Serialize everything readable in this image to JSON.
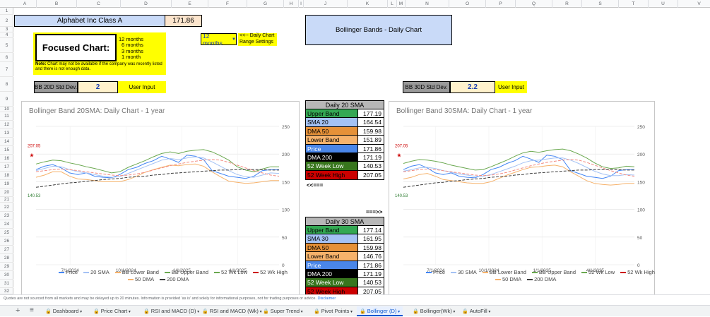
{
  "columns": [
    "A",
    "B",
    "C",
    "D",
    "E",
    "F",
    "G",
    "H",
    "I",
    "J",
    "K",
    "L",
    "M",
    "N",
    "O",
    "P",
    "Q",
    "R",
    "S",
    "T",
    "U",
    "V"
  ],
  "rows": [
    "1",
    "2",
    "3",
    "4",
    "5",
    "6",
    "7",
    "8",
    "9",
    "10",
    "11",
    "12",
    "13",
    "14",
    "15",
    "16",
    "17",
    "18",
    "19",
    "20",
    "21",
    "22",
    "23",
    "24",
    "25",
    "26",
    "27",
    "28",
    "29",
    "30",
    "31",
    "32"
  ],
  "company": {
    "name": "Alphabet Inc Class A",
    "price": "171.86"
  },
  "focused": {
    "label": "Focused Chart:",
    "options": [
      "12 months",
      "6 months",
      "3 months",
      "1 month"
    ],
    "note_bold": "Note:",
    "note": " Chart may not be available if the company was recently listed and there is not enough data."
  },
  "range": {
    "value": "12 months",
    "hint1": "<<-- Daily Chart",
    "hint2": "Range Settings"
  },
  "bb_title": "Bollinger Bands - Daily Chart",
  "std20": {
    "label": "BB 20D Std Dev.",
    "value": "2",
    "input": "User Input"
  },
  "std30": {
    "label": "BB 30D Std Dev.",
    "value": "2.2",
    "input": "User Input"
  },
  "arrow_left": "<<===",
  "arrow_right": "===>>",
  "table20": {
    "title": "Daily 20 SMA",
    "rows": [
      {
        "label": "Upper Band",
        "value": "177.19"
      },
      {
        "label": "SMA 20",
        "value": "164.54"
      },
      {
        "label": "DMA 50",
        "value": "159.98"
      },
      {
        "label": "Lower Band",
        "value": "151.89"
      },
      {
        "label": "Price",
        "value": "171.86"
      },
      {
        "label": "DMA 200",
        "value": "171.19"
      },
      {
        "label": "52 Week Low",
        "value": "140.53"
      },
      {
        "label": "52 Week High",
        "value": "207.05"
      }
    ]
  },
  "table30": {
    "title": "Daily 30 SMA",
    "rows": [
      {
        "label": "Upper Band",
        "value": "177.14"
      },
      {
        "label": "SMA 30",
        "value": "161.95"
      },
      {
        "label": "DMA 50",
        "value": "159.98"
      },
      {
        "label": "Lower Band",
        "value": "146.76"
      },
      {
        "label": "Price",
        "value": "171.86"
      },
      {
        "label": "DMA 200",
        "value": "171.19"
      },
      {
        "label": "52 Week Low",
        "value": "140.53"
      },
      {
        "label": "52 Week High",
        "value": "207.05"
      }
    ]
  },
  "row_colors": [
    "#34a853",
    "#a4c2f4",
    "#e69138",
    "#f6b26b",
    "#4a86e8",
    "#000000",
    "#38761d",
    "#cc0000"
  ],
  "row_text_colors": [
    "#000",
    "#000",
    "#000",
    "#000",
    "#fff",
    "#fff",
    "#fff",
    "#000"
  ],
  "chart_data": [
    {
      "type": "line",
      "title": "Bollinger Band 20SMA: Daily Chart - 1 year",
      "x_ticks": [
        "7/1/2024",
        "10/1/2024",
        "1/1/2025",
        "4/1/2025"
      ],
      "y_ticks": [
        "0",
        "50",
        "100",
        "150",
        "200",
        "250"
      ],
      "ylim": [
        0,
        250
      ],
      "high_label": "207.05",
      "low_label": "140.53",
      "legend": [
        "Price",
        "20 SMA",
        "BB Lower Band",
        "BB Upper Band",
        "52 Wk Low",
        "52 Wk High",
        "50 DMA",
        "200 DMA"
      ],
      "series": [
        {
          "name": "Price",
          "color": "#4285f4",
          "values": [
            172,
            178,
            181,
            175,
            166,
            163,
            166,
            160,
            158,
            157,
            163,
            172,
            176,
            183,
            188,
            196,
            191,
            185,
            198,
            196,
            190,
            170,
            165,
            160,
            158,
            156,
            160,
            170,
            172,
            172
          ]
        },
        {
          "name": "20 SMA",
          "color": "#a4c2f4",
          "values": [
            170,
            174,
            178,
            177,
            172,
            168,
            166,
            163,
            160,
            158,
            159,
            165,
            171,
            177,
            183,
            189,
            192,
            190,
            193,
            195,
            193,
            186,
            178,
            170,
            163,
            159,
            158,
            162,
            166,
            165
          ]
        },
        {
          "name": "BB Lower Band",
          "color": "#f6b26b",
          "values": [
            158,
            162,
            168,
            168,
            160,
            155,
            154,
            152,
            150,
            150,
            150,
            154,
            160,
            167,
            172,
            176,
            180,
            179,
            181,
            182,
            178,
            168,
            159,
            151,
            149,
            147,
            148,
            150,
            152,
            152
          ]
        },
        {
          "name": "BB Upper Band",
          "color": "#6aa84f",
          "values": [
            182,
            186,
            189,
            188,
            184,
            181,
            177,
            174,
            170,
            166,
            168,
            176,
            182,
            188,
            195,
            201,
            204,
            201,
            205,
            207,
            208,
            204,
            197,
            189,
            177,
            171,
            168,
            173,
            177,
            177
          ]
        },
        {
          "name": "50 DMA",
          "color": "#f28b82",
          "values": [
            168,
            170,
            172,
            173,
            172,
            170,
            168,
            166,
            164,
            162,
            161,
            162,
            164,
            167,
            171,
            175,
            179,
            182,
            185,
            187,
            189,
            190,
            189,
            185,
            180,
            175,
            170,
            166,
            162,
            160
          ]
        },
        {
          "name": "200 DMA",
          "color": "#3c3c3c",
          "values": [
            140,
            142,
            144,
            146,
            148,
            149,
            151,
            152,
            154,
            155,
            156,
            158,
            159,
            160,
            162,
            163,
            165,
            166,
            167,
            168,
            169,
            170,
            171,
            171,
            172,
            172,
            172,
            172,
            171,
            171
          ]
        }
      ]
    },
    {
      "type": "line",
      "title": "Bollinger Band 30SMA: Daily Chart - 1 year",
      "x_ticks": [
        "7/1/2024",
        "10/1/2024",
        "1/1/2025",
        "4/1/2025"
      ],
      "y_ticks": [
        "0",
        "50",
        "100",
        "150",
        "200",
        "250"
      ],
      "ylim": [
        0,
        250
      ],
      "high_label": "207.05",
      "low_label": "140.53",
      "legend": [
        "Price",
        "30 SMA",
        "BB Lower Band",
        "BB Upper Band",
        "52 Wk Low",
        "52 Wk High",
        "50 DMA",
        "200 DMA"
      ],
      "series": [
        {
          "name": "Price",
          "color": "#4285f4",
          "values": [
            172,
            178,
            181,
            175,
            166,
            163,
            166,
            160,
            158,
            157,
            163,
            172,
            176,
            183,
            188,
            196,
            191,
            185,
            198,
            196,
            190,
            170,
            165,
            160,
            158,
            156,
            160,
            170,
            172,
            172
          ]
        },
        {
          "name": "30 SMA",
          "color": "#a4c2f4",
          "values": [
            169,
            172,
            175,
            176,
            174,
            170,
            167,
            164,
            162,
            160,
            160,
            163,
            168,
            173,
            178,
            184,
            188,
            189,
            191,
            193,
            193,
            189,
            183,
            176,
            169,
            164,
            161,
            161,
            163,
            162
          ]
        },
        {
          "name": "BB Lower Band",
          "color": "#f6b26b",
          "values": [
            155,
            158,
            163,
            165,
            160,
            154,
            152,
            150,
            148,
            147,
            147,
            150,
            156,
            162,
            167,
            172,
            176,
            177,
            179,
            180,
            177,
            168,
            160,
            152,
            147,
            145,
            144,
            145,
            147,
            147
          ]
        },
        {
          "name": "BB Upper Band",
          "color": "#6aa84f",
          "values": [
            183,
            187,
            190,
            189,
            187,
            184,
            180,
            177,
            174,
            171,
            172,
            177,
            183,
            189,
            196,
            202,
            205,
            203,
            206,
            208,
            209,
            206,
            200,
            193,
            184,
            177,
            174,
            175,
            178,
            177
          ]
        },
        {
          "name": "50 DMA",
          "color": "#f28b82",
          "values": [
            168,
            170,
            172,
            173,
            172,
            170,
            168,
            166,
            164,
            162,
            161,
            162,
            164,
            167,
            171,
            175,
            179,
            182,
            185,
            187,
            189,
            190,
            189,
            185,
            180,
            175,
            170,
            166,
            162,
            160
          ]
        },
        {
          "name": "200 DMA",
          "color": "#3c3c3c",
          "values": [
            140,
            142,
            144,
            146,
            148,
            149,
            151,
            152,
            154,
            155,
            156,
            158,
            159,
            160,
            162,
            163,
            165,
            166,
            167,
            168,
            169,
            170,
            171,
            171,
            172,
            172,
            172,
            172,
            171,
            171
          ]
        }
      ]
    }
  ],
  "footer_note": "Quotes are not sourced from all markets and may be delayed up to 20 minutes. Information is provided 'as is' and solely for informational purposes, not for trading purposes or advice.",
  "footer_link": "Disclaimer",
  "tabs": [
    "Dashboard",
    "Price Chart",
    "RSI and MACD (D)",
    "RSI and MACD (Wk)",
    "Super Trend",
    "Pivot Points",
    "Bollinger (D)",
    "Bollinger(Wk)",
    "AutoFill"
  ]
}
